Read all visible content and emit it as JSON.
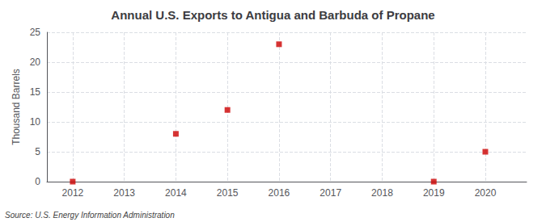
{
  "chart_data": {
    "type": "scatter",
    "title": "Annual U.S. Exports to Antigua and Barbuda of Propane",
    "ylabel": "Thousand Barrels",
    "annotation": "Source: U.S. Energy Information Administration",
    "x": [
      2012,
      2014,
      2015,
      2016,
      2019,
      2020
    ],
    "values": [
      0,
      8,
      12,
      23,
      0,
      5
    ],
    "color": "#cc0000",
    "marker": "square",
    "xlim": [
      2011.5,
      2020.8
    ],
    "ylim": [
      0,
      25
    ],
    "xticks": [
      2012,
      2013,
      2014,
      2015,
      2016,
      2017,
      2018,
      2019,
      2020
    ],
    "yticks": [
      0,
      5,
      10,
      15,
      20,
      25
    ],
    "grid": true
  }
}
